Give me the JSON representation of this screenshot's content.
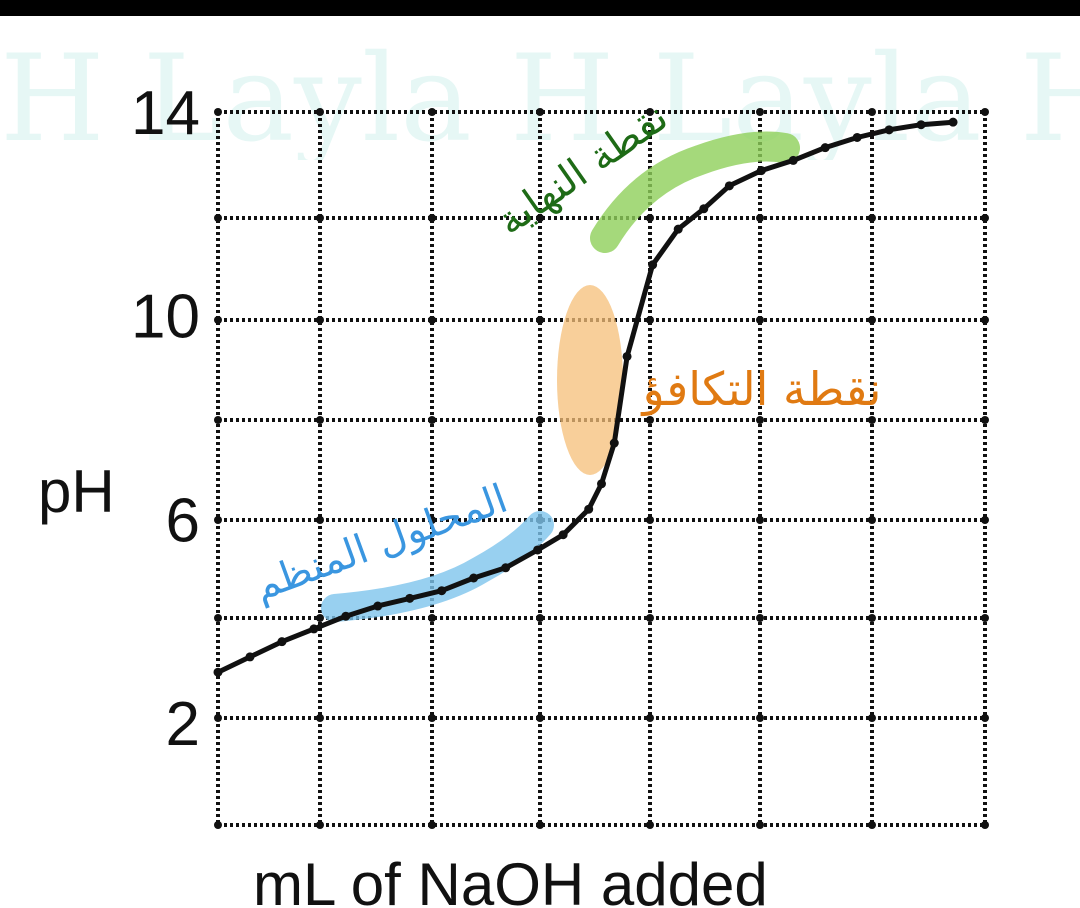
{
  "chart_data": {
    "type": "line",
    "title": "",
    "xlabel": "mL of NaOH added",
    "ylabel": "pH",
    "ylim": [
      0,
      14
    ],
    "yticks": [
      "2",
      "6",
      "10",
      "14"
    ],
    "ytick_values": [
      2,
      6,
      10,
      14
    ],
    "grid": true,
    "series": [
      {
        "x": [
          0,
          0.5,
          1,
          1.5,
          2,
          2.5,
          3,
          3.5,
          4,
          4.5,
          5,
          5.4,
          5.8,
          6,
          6.2,
          6.4,
          6.8,
          7.2,
          7.6,
          8,
          8.5,
          9,
          9.5,
          10,
          10.5,
          11,
          11.5
        ],
        "values": [
          3,
          3.3,
          3.6,
          3.85,
          4.1,
          4.3,
          4.45,
          4.6,
          4.85,
          5.05,
          5.4,
          5.7,
          6.2,
          6.7,
          7.5,
          9.2,
          11,
          11.7,
          12.1,
          12.55,
          12.85,
          13.05,
          13.3,
          13.5,
          13.65,
          13.75,
          13.8
        ]
      }
    ],
    "annotations": [
      {
        "text": "نقطة النهاية",
        "color": "#1e6b16"
      },
      {
        "text": "نقطة التكافؤ",
        "color": "#e07a12"
      },
      {
        "text": "المحلول المنظم",
        "color": "#3a96e0"
      }
    ]
  },
  "watermark": {
    "text": "H Layla H Layla H Layla H"
  },
  "colors": {
    "curve": "#111111",
    "highlight_green": "#8fcf5a",
    "highlight_orange": "#f6bf78",
    "highlight_blue": "#7ec4ec"
  }
}
